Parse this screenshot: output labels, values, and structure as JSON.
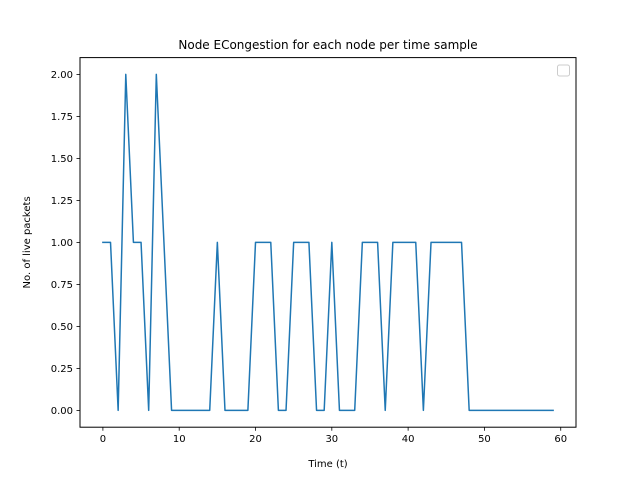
{
  "chart_data": {
    "type": "line",
    "title": "Node ECongestion for each node per time sample",
    "xlabel": "Time (t)",
    "ylabel": "No. of live packets",
    "xlim": [
      -3,
      62
    ],
    "ylim": [
      -0.1,
      2.1
    ],
    "x_ticks": [
      0,
      10,
      20,
      30,
      40,
      50,
      60
    ],
    "x_tick_labels": [
      "0",
      "10",
      "20",
      "30",
      "40",
      "50",
      "60"
    ],
    "y_ticks": [
      0,
      0.25,
      0.5,
      0.75,
      1.0,
      1.25,
      1.5,
      1.75,
      2.0
    ],
    "y_tick_labels": [
      "0.00",
      "0.25",
      "0.50",
      "0.75",
      "1.00",
      "1.25",
      "1.50",
      "1.75",
      "2.00"
    ],
    "grid": false,
    "legend": "top-right",
    "series": [
      {
        "color": "#1f77b4",
        "x": [
          0,
          1,
          2,
          3,
          4,
          5,
          6,
          7,
          8,
          9,
          10,
          11,
          12,
          13,
          14,
          15,
          16,
          17,
          18,
          19,
          20,
          21,
          22,
          23,
          24,
          25,
          26,
          27,
          28,
          29,
          30,
          31,
          32,
          33,
          34,
          35,
          36,
          37,
          38,
          39,
          40,
          41,
          42,
          43,
          44,
          45,
          46,
          47,
          48,
          49,
          50,
          51,
          52,
          53,
          54,
          55,
          56,
          57,
          58,
          59
        ],
        "y": [
          1,
          1,
          0,
          2,
          1,
          1,
          0,
          2,
          1,
          0,
          0,
          0,
          0,
          0,
          0,
          1,
          0,
          0,
          0,
          0,
          1,
          1,
          1,
          0,
          0,
          1,
          1,
          1,
          0,
          0,
          1,
          0,
          0,
          0,
          1,
          1,
          1,
          0,
          1,
          1,
          1,
          1,
          0,
          1,
          1,
          1,
          1,
          1,
          0,
          0,
          0,
          0,
          0,
          0,
          0,
          0,
          0,
          0,
          0,
          0
        ]
      }
    ]
  }
}
